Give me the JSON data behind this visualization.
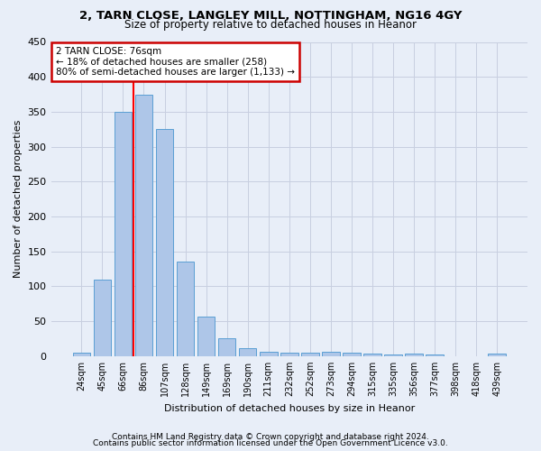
{
  "title1": "2, TARN CLOSE, LANGLEY MILL, NOTTINGHAM, NG16 4GY",
  "title2": "Size of property relative to detached houses in Heanor",
  "xlabel": "Distribution of detached houses by size in Heanor",
  "ylabel": "Number of detached properties",
  "categories": [
    "24sqm",
    "45sqm",
    "66sqm",
    "86sqm",
    "107sqm",
    "128sqm",
    "149sqm",
    "169sqm",
    "190sqm",
    "211sqm",
    "232sqm",
    "252sqm",
    "273sqm",
    "294sqm",
    "315sqm",
    "335sqm",
    "356sqm",
    "377sqm",
    "398sqm",
    "418sqm",
    "439sqm"
  ],
  "values": [
    5,
    110,
    350,
    375,
    325,
    135,
    57,
    26,
    12,
    6,
    5,
    5,
    6,
    5,
    3,
    2,
    3,
    2,
    0,
    0,
    3
  ],
  "bar_color": "#aec6e8",
  "bar_edge_color": "#5a9fd4",
  "red_line_x": 2.5,
  "annotation_text1": "2 TARN CLOSE: 76sqm",
  "annotation_text2": "← 18% of detached houses are smaller (258)",
  "annotation_text3": "80% of semi-detached houses are larger (1,133) →",
  "annotation_box_color": "#ffffff",
  "annotation_box_edge": "#cc0000",
  "footer1": "Contains HM Land Registry data © Crown copyright and database right 2024.",
  "footer2": "Contains public sector information licensed under the Open Government Licence v3.0.",
  "ylim": [
    0,
    450
  ],
  "yticks": [
    0,
    50,
    100,
    150,
    200,
    250,
    300,
    350,
    400,
    450
  ],
  "grid_color": "#c8cfe0",
  "bg_color": "#e8eef8"
}
